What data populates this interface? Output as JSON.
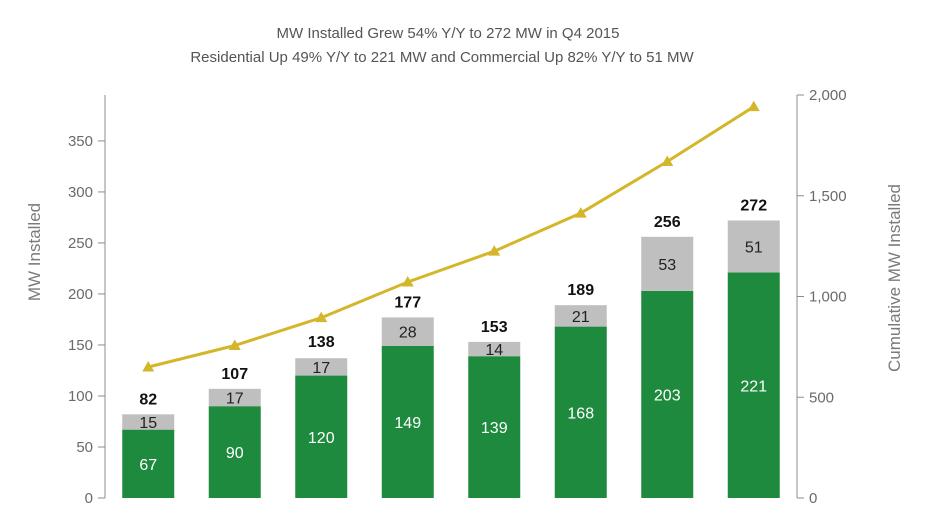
{
  "chart_data": {
    "type": "bar",
    "stacked": true,
    "title": "MW Installed Grew 54% Y/Y to 272 MW in Q4 2015",
    "subtitle": "Residential Up 49% Y/Y to 221 MW and Commercial Up 82% Y/Y to 51 MW",
    "ylabel": "MW Installed",
    "y2label": "Cumulative MW Installed",
    "ylim": [
      0,
      395
    ],
    "yticks": [
      0,
      50,
      100,
      150,
      200,
      250,
      300,
      350
    ],
    "y2lim": [
      0,
      2000
    ],
    "y2ticks": [
      "0",
      "500",
      "1,000",
      "1,500",
      "2,000"
    ],
    "grid": false,
    "categories": [
      "",
      "",
      "",
      "",
      "",
      "",
      "",
      ""
    ],
    "series": [
      {
        "values": [
          67,
          90,
          120,
          149,
          139,
          168,
          203,
          221
        ],
        "color": "#1e8a3e",
        "label_color": "#ffffff"
      },
      {
        "values": [
          15,
          17,
          17,
          28,
          14,
          21,
          53,
          51
        ],
        "color": "#bfbfbf",
        "label_color": "#222222"
      }
    ],
    "totals": [
      82,
      107,
      138,
      177,
      153,
      189,
      256,
      272
    ],
    "line": {
      "axis": "right",
      "values": [
        650,
        757,
        895,
        1072,
        1225,
        1414,
        1670,
        1942
      ],
      "color": "#d4b62a",
      "marker": "triangle"
    },
    "axis_color": "#8c8c8c"
  }
}
